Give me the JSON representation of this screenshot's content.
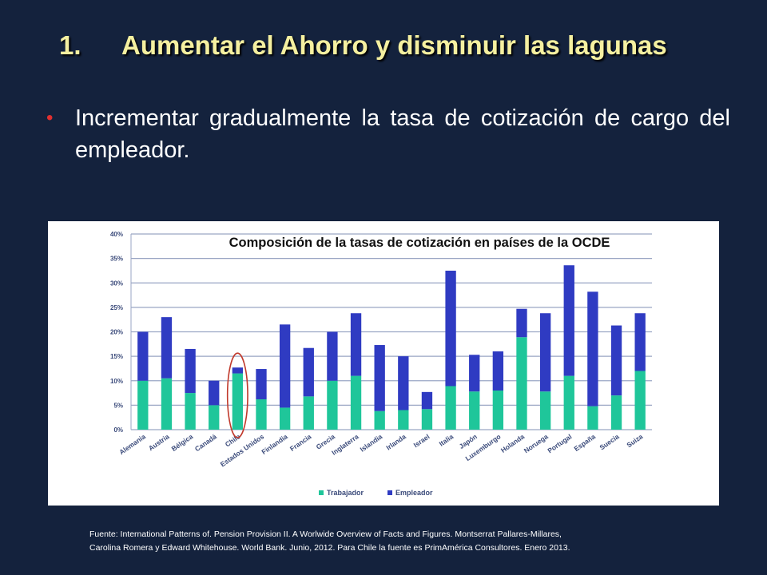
{
  "slide": {
    "title_number": "1.",
    "title_text": "Aumentar el Ahorro y disminuir las lagunas",
    "bullet_text": "Incrementar gradualmente la tasa de cotización de cargo del empleador.",
    "footer_line1": "Fuente: International Patterns of. Pension Provision II. A Worlwide Overview of Facts and Figures. Montserrat Pallares-Millares,",
    "footer_line2": "Carolina Romera y Edward Whitehouse. World Bank. Junio, 2012. Para Chile la fuente es PrimAmérica Consultores. Enero 2013.",
    "colors": {
      "background": "#14223d",
      "title": "#f5f0a0",
      "bullet_dot": "#e03030",
      "highlight_circle": "#c0392b"
    }
  },
  "chart_data": {
    "type": "bar",
    "stacked": true,
    "title": "Composición de la tasas de cotización en países de la OCDE",
    "categories": [
      "Alemania",
      "Austria",
      "Bélgica",
      "Canadá",
      "Chile",
      "Estados Unidos",
      "Finlandia",
      "Francia",
      "Grecia",
      "Inglaterra",
      "Islandia",
      "Irlanda",
      "Israel",
      "Italia",
      "Japón",
      "Luxemburgo",
      "Holanda",
      "Noruega",
      "Portugal",
      "España",
      "Suecia",
      "Suiza"
    ],
    "series": [
      {
        "name": "Trabajador",
        "color": "#1fc69a",
        "values": [
          10,
          10.5,
          7.5,
          5,
          11.5,
          6.2,
          4.5,
          6.8,
          10,
          11,
          3.8,
          4,
          4.2,
          8.9,
          7.8,
          8,
          18.9,
          7.8,
          11,
          4.8,
          7,
          12
        ]
      },
      {
        "name": "Empleador",
        "color": "#2f3bc2",
        "values": [
          10,
          12.5,
          9,
          5,
          1.2,
          6.2,
          17,
          9.9,
          10,
          12.8,
          13.5,
          11,
          3.5,
          23.6,
          7.5,
          8,
          5.8,
          16,
          22.6,
          23.4,
          14.3,
          11.8
        ]
      }
    ],
    "y_ticks": [
      "0%",
      "5%",
      "10%",
      "15%",
      "20%",
      "25%",
      "30%",
      "35%",
      "40%"
    ],
    "ylim": [
      0,
      40
    ],
    "grid": true,
    "legend": "bottom-center",
    "highlight_category": "Chile"
  }
}
